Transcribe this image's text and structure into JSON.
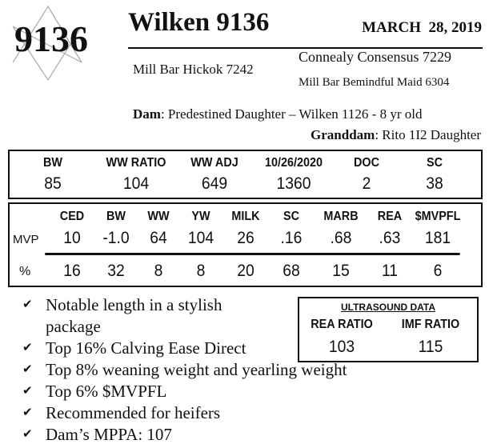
{
  "logo": {
    "number": "9136"
  },
  "header": {
    "title": "Wilken 9136",
    "date": "MARCH  28, 2019"
  },
  "pedigree": {
    "sire": "Mill Bar Hickok 7242",
    "sire_sire": "Connealy Consensus 7229",
    "sire_dam": "Mill Bar Bemindful Maid 6304",
    "dam_label": "Dam",
    "dam": ": Predestined Daughter – Wilken 1126 - 8 yr old",
    "granddam_label": "Granddam",
    "granddam": ": Rito 1I2 Daughter"
  },
  "actuals": {
    "headers": [
      "BW",
      "WW RATIO",
      "WW ADJ",
      "10/26/2020",
      "DOC",
      "SC"
    ],
    "values": [
      "85",
      "104",
      "649",
      "1360",
      "2",
      "38"
    ]
  },
  "epds": {
    "headers": [
      "CED",
      "BW",
      "WW",
      "YW",
      "MILK",
      "SC",
      "MARB",
      "REA",
      "$MVPFL"
    ],
    "mvp_label": "MVP",
    "mvp": [
      "10",
      "-1.0",
      "64",
      "104",
      "26",
      ".16",
      ".68",
      ".63",
      "181"
    ],
    "pct_label": "%",
    "pct": [
      "16",
      "32",
      "8",
      "8",
      "20",
      "68",
      "15",
      "11",
      "6"
    ]
  },
  "bullets": [
    "Notable length in a stylish package",
    "Top 16% Calving Ease Direct",
    "Top 8% weaning weight and yearling weight",
    "Top 6% $MVPFL",
    "Recommended for heifers",
    "Dam’s MPPA: 107"
  ],
  "ultrasound": {
    "title": "ULTRASOUND DATA",
    "headers": [
      "REA RATIO",
      "IMF RATIO"
    ],
    "values": [
      "103",
      "115"
    ]
  }
}
